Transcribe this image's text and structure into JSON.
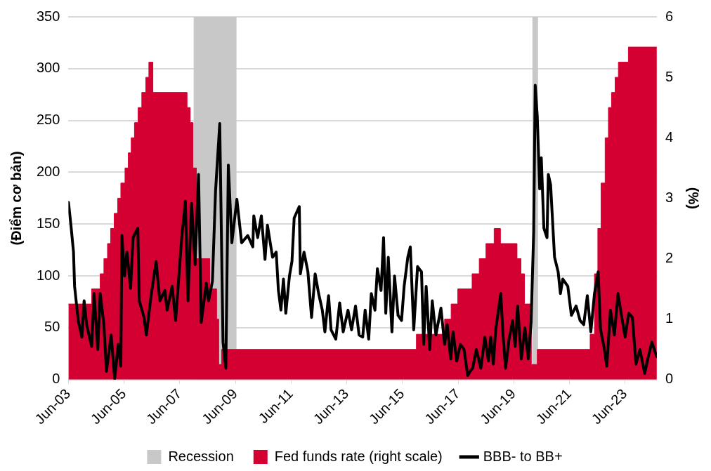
{
  "chart_data": {
    "type": "line",
    "ylabel": "(Điểm cơ bản)",
    "y2label": "(%)",
    "xlim": [
      "2003-06-01",
      "2024-07-22"
    ],
    "xticks": [
      {
        "value": "2003-06-01",
        "label": "Jun-03"
      },
      {
        "value": "2005-06-01",
        "label": "Jun-05"
      },
      {
        "value": "2007-06-01",
        "label": "Jun-07"
      },
      {
        "value": "2009-06-01",
        "label": "Jun-09"
      },
      {
        "value": "2011-06-01",
        "label": "Jun-11"
      },
      {
        "value": "2013-06-01",
        "label": "Jun-13"
      },
      {
        "value": "2015-06-01",
        "label": "Jun-15"
      },
      {
        "value": "2017-06-01",
        "label": "Jun-17"
      },
      {
        "value": "2019-06-01",
        "label": "Jun-19"
      },
      {
        "value": "2021-06-01",
        "label": "Jun-21"
      },
      {
        "value": "2023-06-01",
        "label": "Jun-23"
      }
    ],
    "ylim": [
      0,
      350
    ],
    "yticks": [
      0,
      50,
      100,
      150,
      200,
      250,
      300,
      350
    ],
    "y2lim": [
      0,
      6
    ],
    "y2ticks": [
      0,
      1,
      2,
      3,
      4,
      5,
      6
    ],
    "grid": "y",
    "legend": "bottom",
    "line_style": "solid",
    "marker": "none",
    "bands": [
      {
        "axis": "x",
        "from": "2007-12-01",
        "to": "2009-06-15",
        "label": "Recession",
        "color": "#c8c8c8"
      },
      {
        "axis": "x",
        "from": "2020-02-01",
        "to": "2020-04-15",
        "color": "#c8c8c8"
      }
    ],
    "series": [
      {
        "name": "Fed funds rate (right scale)",
        "type": "area",
        "axis": "y2",
        "color": "#d50032",
        "x": [
          "2003-06-01",
          "2004-04-01",
          "2004-04-01",
          "2004-07-22",
          "2004-07-22",
          "2004-09-09",
          "2004-09-09",
          "2004-10-26",
          "2004-10-26",
          "2004-12-06",
          "2004-12-06",
          "2005-01-22",
          "2005-01-22",
          "2005-03-09",
          "2005-03-09",
          "2005-04-19",
          "2005-04-19",
          "2005-06-13",
          "2005-06-13",
          "2005-07-26",
          "2005-07-26",
          "2005-09-02",
          "2005-09-02",
          "2005-10-15",
          "2005-10-15",
          "2005-12-02",
          "2005-12-02",
          "2006-01-19",
          "2006-01-19",
          "2006-03-13",
          "2006-03-13",
          "2006-04-22",
          "2006-04-22",
          "2006-06-13",
          "2006-06-13",
          "2007-09-02",
          "2007-09-02",
          "2007-10-15",
          "2007-10-15",
          "2007-11-21",
          "2007-11-21",
          "2008-01-04",
          "2008-01-04",
          "2008-06-27",
          "2008-06-27",
          "2008-09-24",
          "2008-09-24",
          "2008-10-22",
          "2008-10-22",
          "2008-12-02",
          "2008-12-02",
          "2015-12-02",
          "2015-12-02",
          "2016-12-06",
          "2016-12-06",
          "2017-03-02",
          "2017-03-02",
          "2017-05-28",
          "2017-05-28",
          "2017-12-02",
          "2017-12-02",
          "2018-03-06",
          "2018-03-06",
          "2018-06-02",
          "2018-06-02",
          "2018-09-17",
          "2018-09-17",
          "2018-12-06",
          "2018-12-06",
          "2019-07-12",
          "2019-07-12",
          "2019-09-02",
          "2019-09-02",
          "2019-10-19",
          "2019-10-19",
          "2020-01-15",
          "2020-01-15",
          "2020-04-05",
          "2020-04-05",
          "2022-02-28",
          "2022-02-28",
          "2022-04-26",
          "2022-04-26",
          "2022-06-09",
          "2022-06-09",
          "2022-07-22",
          "2022-07-22",
          "2022-09-13",
          "2022-09-13",
          "2022-10-26",
          "2022-10-26",
          "2022-12-06",
          "2022-12-06",
          "2023-01-22",
          "2023-01-22",
          "2023-03-06",
          "2023-03-06",
          "2023-07-15",
          "2023-07-15",
          "2024-07-22"
        ],
        "values": [
          1.25,
          1.25,
          1.5,
          1.5,
          1.75,
          1.75,
          2.0,
          2.0,
          2.25,
          2.25,
          2.5,
          2.5,
          2.75,
          2.75,
          3.0,
          3.0,
          3.25,
          3.25,
          3.5,
          3.5,
          3.75,
          3.75,
          4.0,
          4.0,
          4.25,
          4.25,
          4.5,
          4.5,
          4.75,
          4.75,
          5.0,
          5.0,
          5.25,
          5.25,
          4.75,
          4.75,
          4.5,
          4.5,
          4.25,
          4.25,
          3.5,
          3.5,
          2.0,
          2.0,
          1.5,
          1.5,
          1.0,
          1.0,
          0.25,
          0.25,
          0.5,
          0.5,
          0.75,
          0.75,
          1.0,
          1.0,
          1.25,
          1.25,
          1.5,
          1.5,
          1.75,
          1.75,
          2.0,
          2.0,
          2.25,
          2.25,
          2.5,
          2.5,
          2.25,
          2.25,
          2.0,
          2.0,
          1.75,
          1.75,
          1.25,
          1.25,
          0.25,
          0.25,
          0.5,
          0.5,
          0.75,
          0.75,
          1.75,
          1.75,
          2.5,
          2.5,
          3.25,
          3.25,
          4.0,
          4.0,
          4.5,
          4.5,
          4.75,
          4.75,
          5.0,
          5.0,
          5.25,
          5.25,
          5.5,
          5.5
        ]
      },
      {
        "name": "BBB- to BB+",
        "color": "#000000",
        "x": [
          "2003-06-02",
          "2003-07-04",
          "2003-08-07",
          "2003-08-21",
          "2003-10-08",
          "2003-11-25",
          "2003-12-24",
          "2004-01-26",
          "2004-04-01",
          "2004-05-03",
          "2004-06-20",
          "2004-07-22",
          "2004-09-09",
          "2004-10-12",
          "2004-12-13",
          "2005-01-28",
          "2005-03-16",
          "2005-04-19",
          "2005-05-03",
          "2005-06-06",
          "2005-07-08",
          "2005-08-25",
          "2005-09-27",
          "2005-11-28",
          "2005-12-17",
          "2006-02-18",
          "2006-03-20",
          "2006-05-21",
          "2006-07-26",
          "2006-09-13",
          "2006-11-18",
          "2006-12-17",
          "2007-02-21",
          "2007-04-08",
          "2007-06-27",
          "2007-08-14",
          "2007-09-17",
          "2007-11-03",
          "2007-12-20",
          "2008-02-03",
          "2008-03-09",
          "2008-05-14",
          "2008-06-13",
          "2008-08-03",
          "2008-09-13",
          "2008-11-07",
          "2008-12-20",
          "2009-01-26",
          "2009-02-28",
          "2009-04-15",
          "2009-06-20",
          "2009-08-21",
          "2009-11-10",
          "2010-01-15",
          "2010-01-28",
          "2010-03-20",
          "2010-05-07",
          "2010-06-24",
          "2010-07-26",
          "2010-10-01",
          "2010-11-18",
          "2010-12-17",
          "2011-01-19",
          "2011-02-21",
          "2011-03-24",
          "2011-05-11",
          "2011-06-13",
          "2011-07-12",
          "2011-09-17",
          "2011-10-01",
          "2011-11-18",
          "2012-01-08",
          "2012-02-25",
          "2012-04-12",
          "2012-05-28",
          "2012-07-15",
          "2012-08-18",
          "2012-10-05",
          "2012-11-07",
          "2013-01-08",
          "2013-02-28",
          "2013-04-15",
          "2013-06-17",
          "2013-08-03",
          "2013-09-24",
          "2013-11-10",
          "2013-12-27",
          "2014-01-28",
          "2014-03-16",
          "2014-04-19",
          "2014-06-06",
          "2014-07-08",
          "2014-08-25",
          "2014-09-27",
          "2014-10-26",
          "2014-11-28",
          "2015-01-15",
          "2015-02-18",
          "2015-04-05",
          "2015-05-21",
          "2015-06-24",
          "2015-08-11",
          "2015-09-13",
          "2015-10-28",
          "2015-12-17",
          "2016-02-07",
          "2016-03-06",
          "2016-04-08",
          "2016-05-25",
          "2016-06-27",
          "2016-08-14",
          "2016-10-19",
          "2016-12-06",
          "2017-01-08",
          "2017-02-25",
          "2017-03-27",
          "2017-05-14",
          "2017-07-01",
          "2017-08-18",
          "2017-10-05",
          "2017-11-07",
          "2017-12-09",
          "2018-01-26",
          "2018-03-27",
          "2018-05-18",
          "2018-07-04",
          "2018-08-03",
          "2018-09-06",
          "2018-10-08",
          "2018-12-13",
          "2019-01-12",
          "2019-02-14",
          "2019-04-01",
          "2019-05-18",
          "2019-06-20",
          "2019-07-22",
          "2019-09-09",
          "2019-10-26",
          "2019-12-09",
          "2020-01-15",
          "2020-02-18",
          "2020-03-09",
          "2020-04-05",
          "2020-05-07",
          "2020-05-28",
          "2020-07-01",
          "2020-08-11",
          "2020-08-28",
          "2020-09-27",
          "2020-11-18",
          "2021-01-04",
          "2021-02-03",
          "2021-03-06",
          "2021-05-11",
          "2021-06-27",
          "2021-08-28",
          "2021-10-19",
          "2021-12-06",
          "2022-01-22",
          "2022-03-09",
          "2022-04-26",
          "2022-06-13",
          "2022-07-15",
          "2022-08-28",
          "2022-10-05",
          "2022-11-21",
          "2023-01-12",
          "2023-02-28",
          "2023-04-15",
          "2023-06-02",
          "2023-07-19",
          "2023-09-06",
          "2023-10-22",
          "2023-12-13",
          "2024-02-14",
          "2024-04-01",
          "2024-05-18",
          "2024-07-22"
        ],
        "values": [
          171,
          149,
          123,
          90,
          57,
          41,
          76,
          53,
          32,
          83,
          29,
          83,
          53,
          8,
          43,
          1,
          34,
          13,
          139,
          100,
          123,
          88,
          137,
          146,
          76,
          60,
          43,
          81,
          114,
          76,
          86,
          67,
          90,
          57,
          137,
          172,
          76,
          170,
          111,
          198,
          55,
          93,
          76,
          95,
          182,
          247,
          36,
          11,
          207,
          132,
          174,
          132,
          139,
          128,
          158,
          137,
          158,
          116,
          149,
          118,
          123,
          86,
          67,
          97,
          64,
          100,
          114,
          156,
          167,
          102,
          123,
          104,
          60,
          102,
          83,
          67,
          46,
          81,
          48,
          39,
          74,
          46,
          67,
          48,
          71,
          43,
          41,
          67,
          39,
          83,
          67,
          107,
          86,
          137,
          64,
          118,
          46,
          100,
          62,
          57,
          90,
          118,
          128,
          48,
          109,
          104,
          34,
          90,
          29,
          76,
          43,
          69,
          34,
          53,
          20,
          46,
          18,
          34,
          29,
          4,
          8,
          11,
          29,
          11,
          41,
          18,
          41,
          15,
          48,
          83,
          43,
          11,
          39,
          57,
          32,
          71,
          20,
          50,
          20,
          55,
          142,
          284,
          254,
          184,
          214,
          146,
          137,
          198,
          188,
          118,
          104,
          83,
          97,
          90,
          62,
          71,
          57,
          53,
          81,
          46,
          83,
          104,
          48,
          32,
          13,
          67,
          43,
          83,
          62,
          41,
          64,
          60,
          15,
          29,
          6,
          22,
          36,
          22
        ]
      }
    ]
  }
}
